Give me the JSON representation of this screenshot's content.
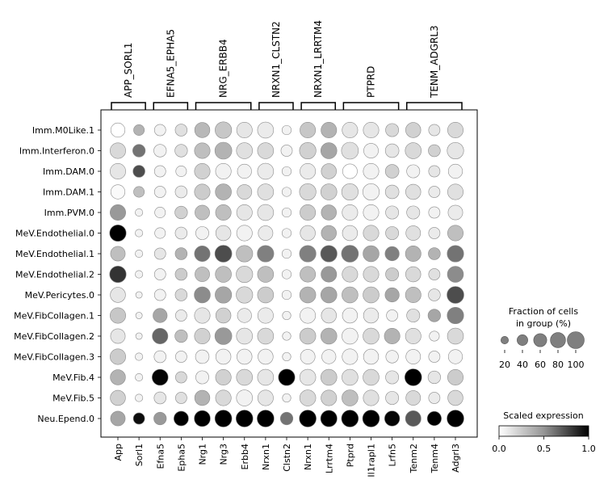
{
  "chart_data": {
    "type": "dotplot",
    "groups": [
      {
        "label": "APP_SORL1",
        "genes": [
          "App",
          "Sorl1"
        ]
      },
      {
        "label": "EFNA5_EPHA5",
        "genes": [
          "Efna5",
          "Epha5"
        ]
      },
      {
        "label": "NRG_ERBB4",
        "genes": [
          "Nrg1",
          "Nrg3",
          "Erbb4"
        ]
      },
      {
        "label": "NRXN1_CLSTN2",
        "genes": [
          "Nrxn1",
          "Clstn2"
        ]
      },
      {
        "label": "NRXN1_LRRTM4",
        "genes": [
          "Nrxn1",
          "Lrrtm4"
        ]
      },
      {
        "label": "PTPRD",
        "genes": [
          "Ptprd",
          "Il1rapl1",
          "Lrfn5"
        ]
      },
      {
        "label": "TENM_ADGRL3",
        "genes": [
          "Tenm2",
          "Tenm4",
          "Adgrl3"
        ]
      }
    ],
    "columns": [
      "App",
      "Sorl1",
      "Efna5",
      "Epha5",
      "Nrg1",
      "Nrg3",
      "Erbb4",
      "Nrxn1",
      "Clstn2",
      "Nrxn1",
      "Lrrtm4",
      "Ptprd",
      "Il1rapl1",
      "Lrfn5",
      "Tenm2",
      "Tenm4",
      "Adgrl3"
    ],
    "rows": [
      "Imm.M0Like.1",
      "Imm.Interferon.0",
      "Imm.DAM.0",
      "Imm.DAM.1",
      "Imm.PVM.0",
      "MeV.Endothelial.0",
      "MeV.Endothelial.1",
      "MeV.Endothelial.2",
      "MeV.Pericytes.0",
      "MeV.FibCollagen.1",
      "MeV.FibCollagen.2",
      "MeV.FibCollagen.3",
      "MeV.Fib.4",
      "MeV.Fib.5",
      "Neu.Epend.0"
    ],
    "fraction": [
      [
        70,
        40,
        45,
        50,
        80,
        95,
        85,
        90,
        30,
        85,
        85,
        85,
        85,
        60,
        80,
        45,
        85
      ],
      [
        85,
        55,
        55,
        55,
        85,
        100,
        90,
        90,
        45,
        95,
        90,
        100,
        75,
        65,
        90,
        50,
        95
      ],
      [
        85,
        50,
        45,
        40,
        85,
        85,
        70,
        90,
        30,
        85,
        80,
        75,
        85,
        65,
        60,
        45,
        70
      ],
      [
        70,
        40,
        45,
        50,
        85,
        90,
        75,
        90,
        30,
        95,
        90,
        95,
        95,
        65,
        80,
        45,
        85
      ],
      [
        85,
        20,
        40,
        55,
        75,
        85,
        85,
        90,
        30,
        85,
        80,
        85,
        85,
        60,
        60,
        45,
        75
      ],
      [
        95,
        20,
        40,
        50,
        60,
        80,
        85,
        75,
        30,
        80,
        80,
        80,
        85,
        60,
        75,
        45,
        85
      ],
      [
        75,
        20,
        45,
        50,
        85,
        100,
        95,
        95,
        30,
        95,
        95,
        100,
        90,
        70,
        85,
        50,
        95
      ],
      [
        95,
        20,
        45,
        50,
        75,
        90,
        95,
        90,
        30,
        85,
        85,
        85,
        85,
        60,
        80,
        45,
        90
      ],
      [
        80,
        15,
        45,
        50,
        90,
        95,
        95,
        90,
        30,
        90,
        90,
        90,
        90,
        70,
        85,
        50,
        100
      ],
      [
        85,
        15,
        70,
        45,
        85,
        80,
        70,
        85,
        25,
        85,
        80,
        80,
        80,
        45,
        60,
        55,
        95
      ],
      [
        75,
        15,
        85,
        55,
        85,
        100,
        90,
        90,
        25,
        90,
        90,
        90,
        90,
        85,
        85,
        35,
        90
      ],
      [
        85,
        20,
        50,
        45,
        65,
        80,
        80,
        80,
        25,
        75,
        70,
        85,
        80,
        55,
        75,
        45,
        70
      ],
      [
        80,
        20,
        90,
        45,
        60,
        85,
        90,
        90,
        95,
        90,
        90,
        90,
        90,
        60,
        100,
        55,
        85
      ],
      [
        80,
        20,
        50,
        45,
        80,
        85,
        90,
        85,
        25,
        90,
        85,
        90,
        85,
        60,
        75,
        45,
        80
      ],
      [
        75,
        45,
        55,
        75,
        90,
        100,
        100,
        100,
        55,
        100,
        95,
        100,
        100,
        80,
        85,
        70,
        100
      ]
    ],
    "expression": [
      [
        0.0,
        0.3,
        0.05,
        0.12,
        0.28,
        0.22,
        0.1,
        0.08,
        0.05,
        0.22,
        0.3,
        0.1,
        0.1,
        0.15,
        0.18,
        0.1,
        0.15
      ],
      [
        0.15,
        0.55,
        0.05,
        0.12,
        0.25,
        0.3,
        0.12,
        0.15,
        0.05,
        0.18,
        0.35,
        0.12,
        0.05,
        0.1,
        0.15,
        0.18,
        0.1
      ],
      [
        0.1,
        0.7,
        0.05,
        0.05,
        0.18,
        0.05,
        0.05,
        0.08,
        0.05,
        0.08,
        0.18,
        0.0,
        0.05,
        0.18,
        0.05,
        0.1,
        0.05
      ],
      [
        0.02,
        0.25,
        0.05,
        0.08,
        0.2,
        0.3,
        0.15,
        0.12,
        0.05,
        0.15,
        0.18,
        0.12,
        0.05,
        0.12,
        0.12,
        0.08,
        0.12
      ],
      [
        0.4,
        0.05,
        0.05,
        0.18,
        0.25,
        0.25,
        0.1,
        0.1,
        0.05,
        0.2,
        0.3,
        0.08,
        0.05,
        0.1,
        0.1,
        0.05,
        0.08
      ],
      [
        1.0,
        0.05,
        0.05,
        0.08,
        0.05,
        0.1,
        0.05,
        0.08,
        0.05,
        0.1,
        0.3,
        0.08,
        0.15,
        0.15,
        0.12,
        0.08,
        0.25
      ],
      [
        0.25,
        0.05,
        0.1,
        0.3,
        0.55,
        0.7,
        0.25,
        0.5,
        0.05,
        0.5,
        0.65,
        0.55,
        0.35,
        0.5,
        0.3,
        0.3,
        0.55
      ],
      [
        0.8,
        0.05,
        0.05,
        0.2,
        0.25,
        0.25,
        0.15,
        0.25,
        0.05,
        0.25,
        0.4,
        0.15,
        0.15,
        0.2,
        0.15,
        0.12,
        0.45
      ],
      [
        0.1,
        0.05,
        0.05,
        0.15,
        0.45,
        0.35,
        0.15,
        0.2,
        0.05,
        0.3,
        0.35,
        0.25,
        0.2,
        0.35,
        0.25,
        0.1,
        0.7
      ],
      [
        0.22,
        0.05,
        0.35,
        0.08,
        0.1,
        0.18,
        0.08,
        0.08,
        0.05,
        0.05,
        0.1,
        0.05,
        0.08,
        0.05,
        0.12,
        0.35,
        0.5
      ],
      [
        0.1,
        0.05,
        0.6,
        0.25,
        0.18,
        0.4,
        0.1,
        0.15,
        0.05,
        0.2,
        0.3,
        0.05,
        0.15,
        0.3,
        0.12,
        0.05,
        0.15
      ],
      [
        0.2,
        0.05,
        0.05,
        0.05,
        0.05,
        0.05,
        0.05,
        0.05,
        0.05,
        0.05,
        0.05,
        0.05,
        0.05,
        0.05,
        0.05,
        0.05,
        0.05
      ],
      [
        0.3,
        0.05,
        0.98,
        0.15,
        0.05,
        0.18,
        0.15,
        0.1,
        1.0,
        0.1,
        0.2,
        0.12,
        0.15,
        0.1,
        1.0,
        0.1,
        0.2
      ],
      [
        0.18,
        0.05,
        0.1,
        0.12,
        0.3,
        0.15,
        0.05,
        0.1,
        0.05,
        0.15,
        0.18,
        0.25,
        0.12,
        0.1,
        0.15,
        0.08,
        0.15
      ],
      [
        0.35,
        0.95,
        0.4,
        1.0,
        1.0,
        1.0,
        1.0,
        1.0,
        0.55,
        1.0,
        1.0,
        1.0,
        1.0,
        0.98,
        0.65,
        1.0,
        1.0
      ]
    ],
    "size_legend": {
      "title_line1": "Fraction of cells",
      "title_line2": "in group (%)",
      "ticks": [
        "20",
        "40",
        "60",
        "80",
        "100"
      ]
    },
    "color_legend": {
      "title": "Scaled expression",
      "ticks": [
        "0.0",
        "0.5",
        "1.0"
      ],
      "colormap": "Greys",
      "range": [
        0,
        1
      ]
    }
  }
}
